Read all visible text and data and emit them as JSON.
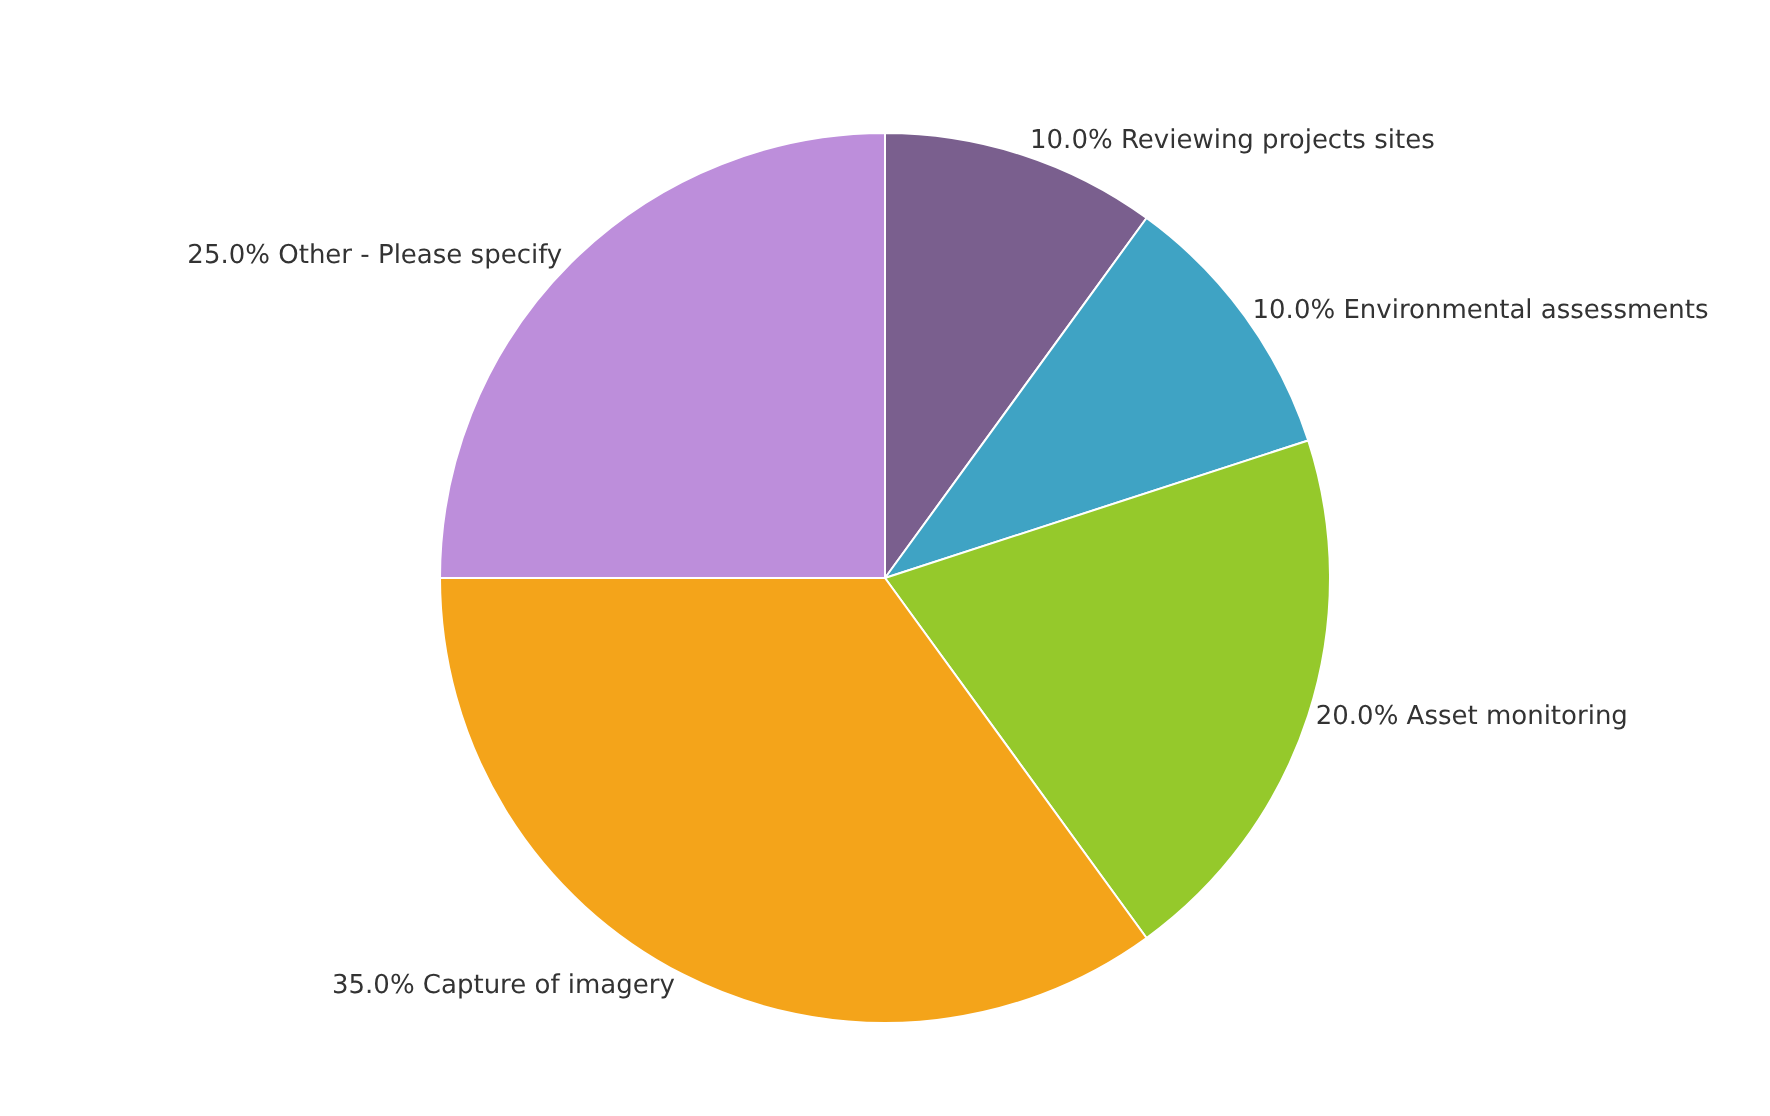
{
  "chart_data": {
    "type": "pie",
    "categories": [
      "Reviewing projects sites",
      "Environmental assessments",
      "Asset monitoring",
      "Capture of imagery",
      "Other - Please specify"
    ],
    "values": [
      10,
      10,
      20,
      35,
      25
    ],
    "value_labels": [
      "10.0%",
      "10.0%",
      "20.0%",
      "35.0%",
      "25.0%"
    ],
    "colors": [
      "#7a5f8e",
      "#3fa3c4",
      "#95c92b",
      "#f4a41a",
      "#bd8edb"
    ],
    "legend": false
  }
}
